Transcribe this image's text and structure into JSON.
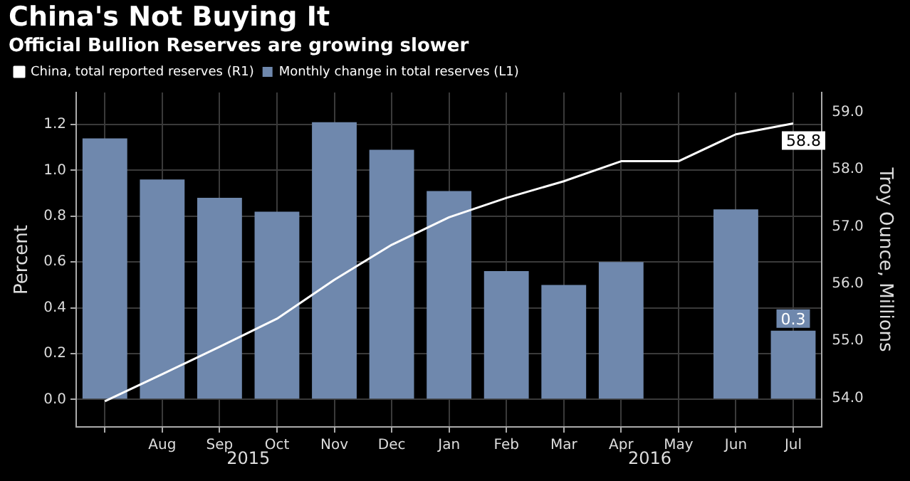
{
  "chart_data": {
    "type": "bar",
    "title": "China's Not Buying It",
    "subtitle": "Official Bullion Reserves are growing slower",
    "ylabel": "Percent",
    "y2label": "Troy Ounce, Millions",
    "categories": [
      null,
      "Aug",
      "Sep",
      "Oct",
      "Nov",
      "Dec",
      "Jan",
      "Feb",
      "Mar",
      "Apr",
      "May",
      "Jun",
      "Jul"
    ],
    "series": [
      {
        "name": "China, total reported reserves (R1)",
        "type": "line",
        "axis": "y2",
        "color": "#ffffff",
        "values": [
          53.95,
          54.42,
          54.9,
          55.39,
          56.07,
          56.68,
          57.16,
          57.5,
          57.79,
          58.14,
          58.14,
          58.61,
          58.8
        ],
        "value_labels": [
          null,
          null,
          null,
          null,
          null,
          null,
          null,
          null,
          null,
          null,
          null,
          null,
          "58.8"
        ]
      },
      {
        "name": "Monthly change in total reserves (L1)",
        "axis": "y",
        "color": "#6f88ad",
        "values": [
          1.14,
          0.96,
          0.88,
          0.82,
          1.21,
          1.09,
          0.91,
          0.56,
          0.5,
          0.6,
          0,
          0.83,
          0.3
        ],
        "value_labels": [
          null,
          null,
          null,
          null,
          null,
          null,
          null,
          null,
          null,
          null,
          null,
          null,
          "0.3"
        ]
      }
    ],
    "ylim": [
      -0.12,
      1.34
    ],
    "yticks": [
      {
        "value": 0,
        "label": "0.0"
      },
      {
        "value": 0.2,
        "label": "0.2"
      },
      {
        "value": 0.4,
        "label": "0.4"
      },
      {
        "value": 0.6,
        "label": "0.6"
      },
      {
        "value": 0.8,
        "label": "0.8"
      },
      {
        "value": 1,
        "label": "1.0"
      },
      {
        "value": 1.2,
        "label": "1.2"
      }
    ],
    "y2lim": [
      53.5,
      59.34
    ],
    "y2ticks": [
      {
        "value": 54,
        "label": "54.0"
      },
      {
        "value": 55,
        "label": "55.0"
      },
      {
        "value": 56,
        "label": "56.0"
      },
      {
        "value": 57,
        "label": "57.0"
      },
      {
        "value": 58,
        "label": "58.0"
      },
      {
        "value": 59,
        "label": "59.0"
      }
    ],
    "annotations": [
      "2015",
      "2016"
    ],
    "grid": true,
    "legend": "top left",
    "marker": "none"
  }
}
